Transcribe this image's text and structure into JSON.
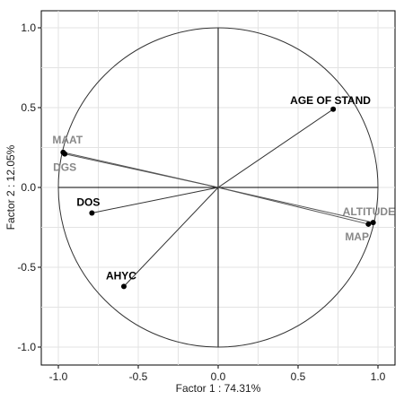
{
  "chart_data": {
    "type": "scatter",
    "subtype": "pca-correlation-circle",
    "xlabel": "Factor 1 : 74.31%",
    "ylabel": "Factor 2 : 12.05%",
    "xlim": [
      -1.1,
      1.1
    ],
    "ylim": [
      -1.1,
      1.1
    ],
    "x_ticks": [
      "-1.0",
      "-0.5",
      "0.0",
      "0.5",
      "1.0"
    ],
    "y_ticks": [
      "1.0",
      "0.5",
      "0.0",
      "-0.5",
      "-1.0"
    ],
    "x_tick_values": [
      -1.0,
      -0.5,
      0.0,
      0.5,
      1.0
    ],
    "y_tick_values": [
      1.0,
      0.5,
      0.0,
      -0.5,
      -1.0
    ],
    "grid": true,
    "unit_circle": true,
    "variables": [
      {
        "name": "AGE OF STAND",
        "x": 0.72,
        "y": 0.49,
        "color": "#000000",
        "label_pos": "above-left"
      },
      {
        "name": "MAAT",
        "x": -0.97,
        "y": 0.22,
        "color": "#888888",
        "label_pos": "above"
      },
      {
        "name": "DGS",
        "x": -0.96,
        "y": 0.21,
        "color": "#888888",
        "label_pos": "below"
      },
      {
        "name": "DOS",
        "x": -0.79,
        "y": -0.16,
        "color": "#000000",
        "label_pos": "above-left"
      },
      {
        "name": "AHYC",
        "x": -0.59,
        "y": -0.62,
        "color": "#000000",
        "label_pos": "above-left"
      },
      {
        "name": "ALTITUDE",
        "x": 0.97,
        "y": -0.22,
        "color": "#888888",
        "label_pos": "above-left"
      },
      {
        "name": "MAP",
        "x": 0.94,
        "y": -0.23,
        "color": "#888888",
        "label_pos": "below-left"
      }
    ]
  }
}
